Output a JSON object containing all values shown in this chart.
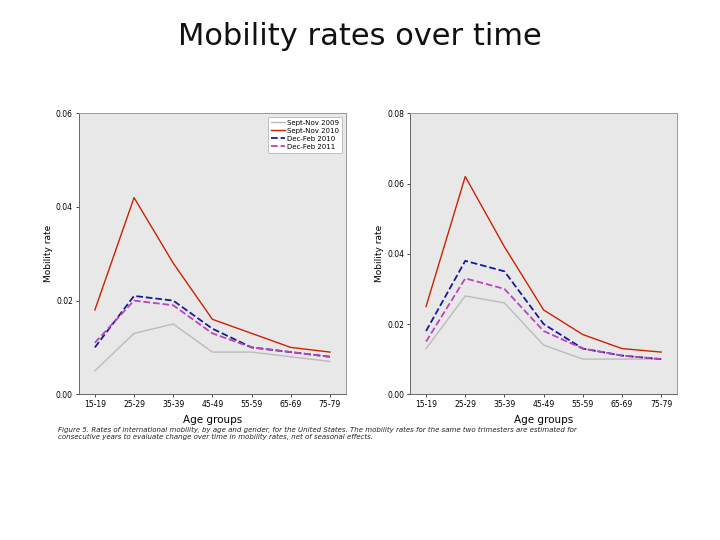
{
  "title": "Mobility rates over time",
  "title_fontsize": 22,
  "xlabel": "Age groups",
  "ylabel": "Mobility rate",
  "age_labels": [
    "15-19",
    "25-29",
    "35-39",
    "45-49",
    "55-59",
    "65-69",
    "75-79"
  ],
  "x_vals": [
    0,
    1,
    2,
    3,
    4,
    5,
    6
  ],
  "panel1": {
    "Sept_Nov_2009": [
      0.005,
      0.013,
      0.015,
      0.009,
      0.009,
      0.008,
      0.007
    ],
    "Sept_Nov_2010": [
      0.018,
      0.042,
      0.028,
      0.016,
      0.013,
      0.01,
      0.009
    ],
    "Dec_Feb_2010": [
      0.01,
      0.021,
      0.02,
      0.014,
      0.01,
      0.009,
      0.008
    ],
    "Dec_Feb_2011": [
      0.011,
      0.02,
      0.019,
      0.013,
      0.01,
      0.009,
      0.008
    ]
  },
  "panel2": {
    "Sept_Nov_2009": [
      0.013,
      0.028,
      0.026,
      0.014,
      0.01,
      0.01,
      0.01
    ],
    "Sept_Nov_2010": [
      0.025,
      0.062,
      0.042,
      0.024,
      0.017,
      0.013,
      0.012
    ],
    "Dec_Feb_2010": [
      0.018,
      0.038,
      0.035,
      0.02,
      0.013,
      0.011,
      0.01
    ],
    "Dec_Feb_2011": [
      0.015,
      0.033,
      0.03,
      0.018,
      0.013,
      0.011,
      0.01
    ]
  },
  "ylim1": [
    0.0,
    0.06
  ],
  "ylim2": [
    0.0,
    0.08
  ],
  "yticks1": [
    0.0,
    0.02,
    0.04,
    0.06
  ],
  "yticks2": [
    0.0,
    0.02,
    0.04,
    0.06,
    0.08
  ],
  "colors": {
    "Sept_Nov_2009": "#bbbbbb",
    "Sept_Nov_2010": "#cc2200",
    "Dec_Feb_2010": "#1a1a99",
    "Dec_Feb_2011": "#bb44bb"
  },
  "legend_labels": [
    "Sept-Nov 2009",
    "Sept-Nov 2010",
    "Dec-Feb 2010",
    "Dec-Feb 2011"
  ],
  "caption": "Figure 5. Rates of international mobility, by age and gender, for the United States. The mobility rates for the same two trimesters are estimated for\nconsecutive years to evaluate change over time in mobility rates, net of seasonal effects.",
  "background_color": "#ffffff",
  "plot_bg": "#e8e8e8"
}
